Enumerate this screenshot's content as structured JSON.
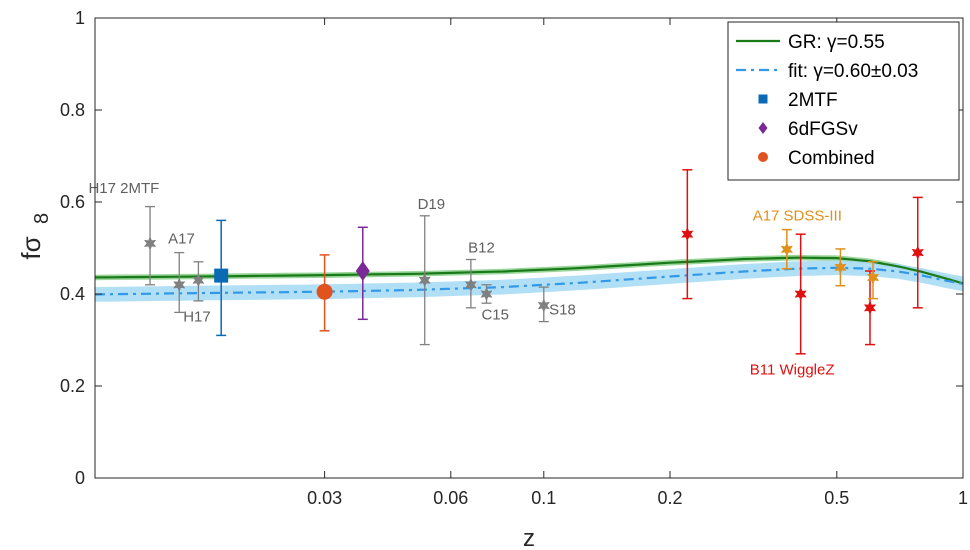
{
  "chart_data": {
    "type": "scatter",
    "xlabel": "z",
    "ylabel": "fσ",
    "ylabel_sub": "8",
    "xscale": "log",
    "xlim": [
      0.0085,
      1.0
    ],
    "ylim": [
      0,
      1
    ],
    "xticks": [
      {
        "value": 0.03,
        "label": "0.03"
      },
      {
        "value": 0.06,
        "label": "0.06"
      },
      {
        "value": 0.1,
        "label": "0.1"
      },
      {
        "value": 0.2,
        "label": "0.2"
      },
      {
        "value": 0.5,
        "label": "0.5"
      },
      {
        "value": 1.0,
        "label": "1"
      }
    ],
    "yticks": [
      {
        "value": 0,
        "label": "0"
      },
      {
        "value": 0.2,
        "label": "0.2"
      },
      {
        "value": 0.4,
        "label": "0.4"
      },
      {
        "value": 0.6,
        "label": "0.6"
      },
      {
        "value": 0.8,
        "label": "0.8"
      },
      {
        "value": 1.0,
        "label": "1"
      }
    ],
    "curves": [
      {
        "name": "GR",
        "legend": "GR: γ=0.55",
        "color": "#1a7a1a",
        "band_color": "#8fd18f",
        "dash": "",
        "x": [
          0.0085,
          0.015,
          0.03,
          0.05,
          0.08,
          0.12,
          0.2,
          0.3,
          0.4,
          0.5,
          0.6,
          0.7,
          0.8,
          0.9,
          1.0
        ],
        "y": [
          0.436,
          0.438,
          0.441,
          0.444,
          0.449,
          0.456,
          0.468,
          0.476,
          0.479,
          0.478,
          0.471,
          0.46,
          0.448,
          0.435,
          0.423
        ],
        "band": 0.006
      },
      {
        "name": "fit",
        "legend": "fit: γ=0.60±0.03",
        "color": "#3399e6",
        "band_color": "#a8dcf5",
        "dash": "10,5,3,5",
        "x": [
          0.0085,
          0.015,
          0.03,
          0.05,
          0.08,
          0.12,
          0.2,
          0.3,
          0.4,
          0.5,
          0.6,
          0.7,
          0.8,
          0.9,
          1.0
        ],
        "y": [
          0.399,
          0.402,
          0.405,
          0.409,
          0.415,
          0.424,
          0.438,
          0.449,
          0.455,
          0.457,
          0.455,
          0.449,
          0.44,
          0.43,
          0.422
        ],
        "band": 0.016
      }
    ],
    "points": [
      {
        "group": "other",
        "marker": "star",
        "color": "#808080",
        "x": 0.0115,
        "y": 0.51,
        "lo": 0.42,
        "hi": 0.59
      },
      {
        "group": "other",
        "marker": "star",
        "color": "#808080",
        "x": 0.0135,
        "y": 0.42,
        "lo": 0.36,
        "hi": 0.49
      },
      {
        "group": "other",
        "marker": "star",
        "color": "#808080",
        "x": 0.015,
        "y": 0.43,
        "lo": 0.385,
        "hi": 0.47
      },
      {
        "group": "other",
        "marker": "star",
        "color": "#808080",
        "x": 0.052,
        "y": 0.43,
        "lo": 0.29,
        "hi": 0.57
      },
      {
        "group": "other",
        "marker": "star",
        "color": "#808080",
        "x": 0.067,
        "y": 0.42,
        "lo": 0.37,
        "hi": 0.475
      },
      {
        "group": "other",
        "marker": "star",
        "color": "#808080",
        "x": 0.073,
        "y": 0.4,
        "lo": 0.38,
        "hi": 0.42
      },
      {
        "group": "other",
        "marker": "star",
        "color": "#808080",
        "x": 0.1,
        "y": 0.375,
        "lo": 0.34,
        "hi": 0.415
      },
      {
        "group": "2MTF",
        "marker": "square",
        "color": "#0a6ab3",
        "x": 0.017,
        "y": 0.44,
        "lo": 0.31,
        "hi": 0.56
      },
      {
        "group": "Combined",
        "marker": "circle",
        "color": "#e0531f",
        "x": 0.03,
        "y": 0.405,
        "lo": 0.32,
        "hi": 0.485
      },
      {
        "group": "6dFGSv",
        "marker": "diamond",
        "color": "#7a2a96",
        "x": 0.037,
        "y": 0.45,
        "lo": 0.345,
        "hi": 0.545
      },
      {
        "group": "WiggleZ",
        "marker": "star",
        "color": "#e01010",
        "x": 0.22,
        "y": 0.53,
        "lo": 0.39,
        "hi": 0.67
      },
      {
        "group": "WiggleZ",
        "marker": "star",
        "color": "#e01010",
        "x": 0.41,
        "y": 0.4,
        "lo": 0.27,
        "hi": 0.53
      },
      {
        "group": "WiggleZ",
        "marker": "star",
        "color": "#e01010",
        "x": 0.6,
        "y": 0.37,
        "lo": 0.29,
        "hi": 0.45
      },
      {
        "group": "WiggleZ",
        "marker": "star",
        "color": "#e01010",
        "x": 0.78,
        "y": 0.49,
        "lo": 0.37,
        "hi": 0.61
      },
      {
        "group": "SDSS-III",
        "marker": "star",
        "color": "#e0901a",
        "x": 0.38,
        "y": 0.497,
        "lo": 0.455,
        "hi": 0.54
      },
      {
        "group": "SDSS-III",
        "marker": "star",
        "color": "#e0901a",
        "x": 0.51,
        "y": 0.458,
        "lo": 0.418,
        "hi": 0.498
      },
      {
        "group": "SDSS-III",
        "marker": "star",
        "color": "#e0901a",
        "x": 0.61,
        "y": 0.436,
        "lo": 0.39,
        "hi": 0.47
      }
    ],
    "annotations": [
      {
        "text": "H17 2MTF",
        "x": 0.0082,
        "y": 0.62,
        "color": "#606060",
        "size": 15
      },
      {
        "text": "A17",
        "x": 0.0127,
        "y": 0.51,
        "color": "#606060",
        "size": 15
      },
      {
        "text": "H17",
        "x": 0.0138,
        "y": 0.34,
        "color": "#606060",
        "size": 15
      },
      {
        "text": "D19",
        "x": 0.05,
        "y": 0.585,
        "color": "#606060",
        "size": 15
      },
      {
        "text": "B12",
        "x": 0.066,
        "y": 0.49,
        "color": "#606060",
        "size": 15
      },
      {
        "text": "C15",
        "x": 0.071,
        "y": 0.345,
        "color": "#606060",
        "size": 15
      },
      {
        "text": "S18",
        "x": 0.103,
        "y": 0.355,
        "color": "#606060",
        "size": 15
      },
      {
        "text": "A17 SDSS-III",
        "x": 0.315,
        "y": 0.56,
        "color": "#e0901a",
        "size": 18
      },
      {
        "text": "B11 WiggleZ",
        "x": 0.31,
        "y": 0.225,
        "color": "#e01010",
        "size": 18
      }
    ],
    "legend": {
      "position": "top-right",
      "entries": [
        {
          "label": "GR: γ=0.55",
          "type": "line",
          "color": "#1a7a1a",
          "dash": ""
        },
        {
          "label": "fit: γ=0.60±0.03",
          "type": "line",
          "color": "#3399e6",
          "dash": "10,5,3,5"
        },
        {
          "label": "2MTF",
          "type": "square",
          "color": "#0a6ab3"
        },
        {
          "label": "6dFGSv",
          "type": "diamond",
          "color": "#7a2a96"
        },
        {
          "label": "Combined",
          "type": "circle",
          "color": "#e0531f"
        }
      ]
    }
  }
}
